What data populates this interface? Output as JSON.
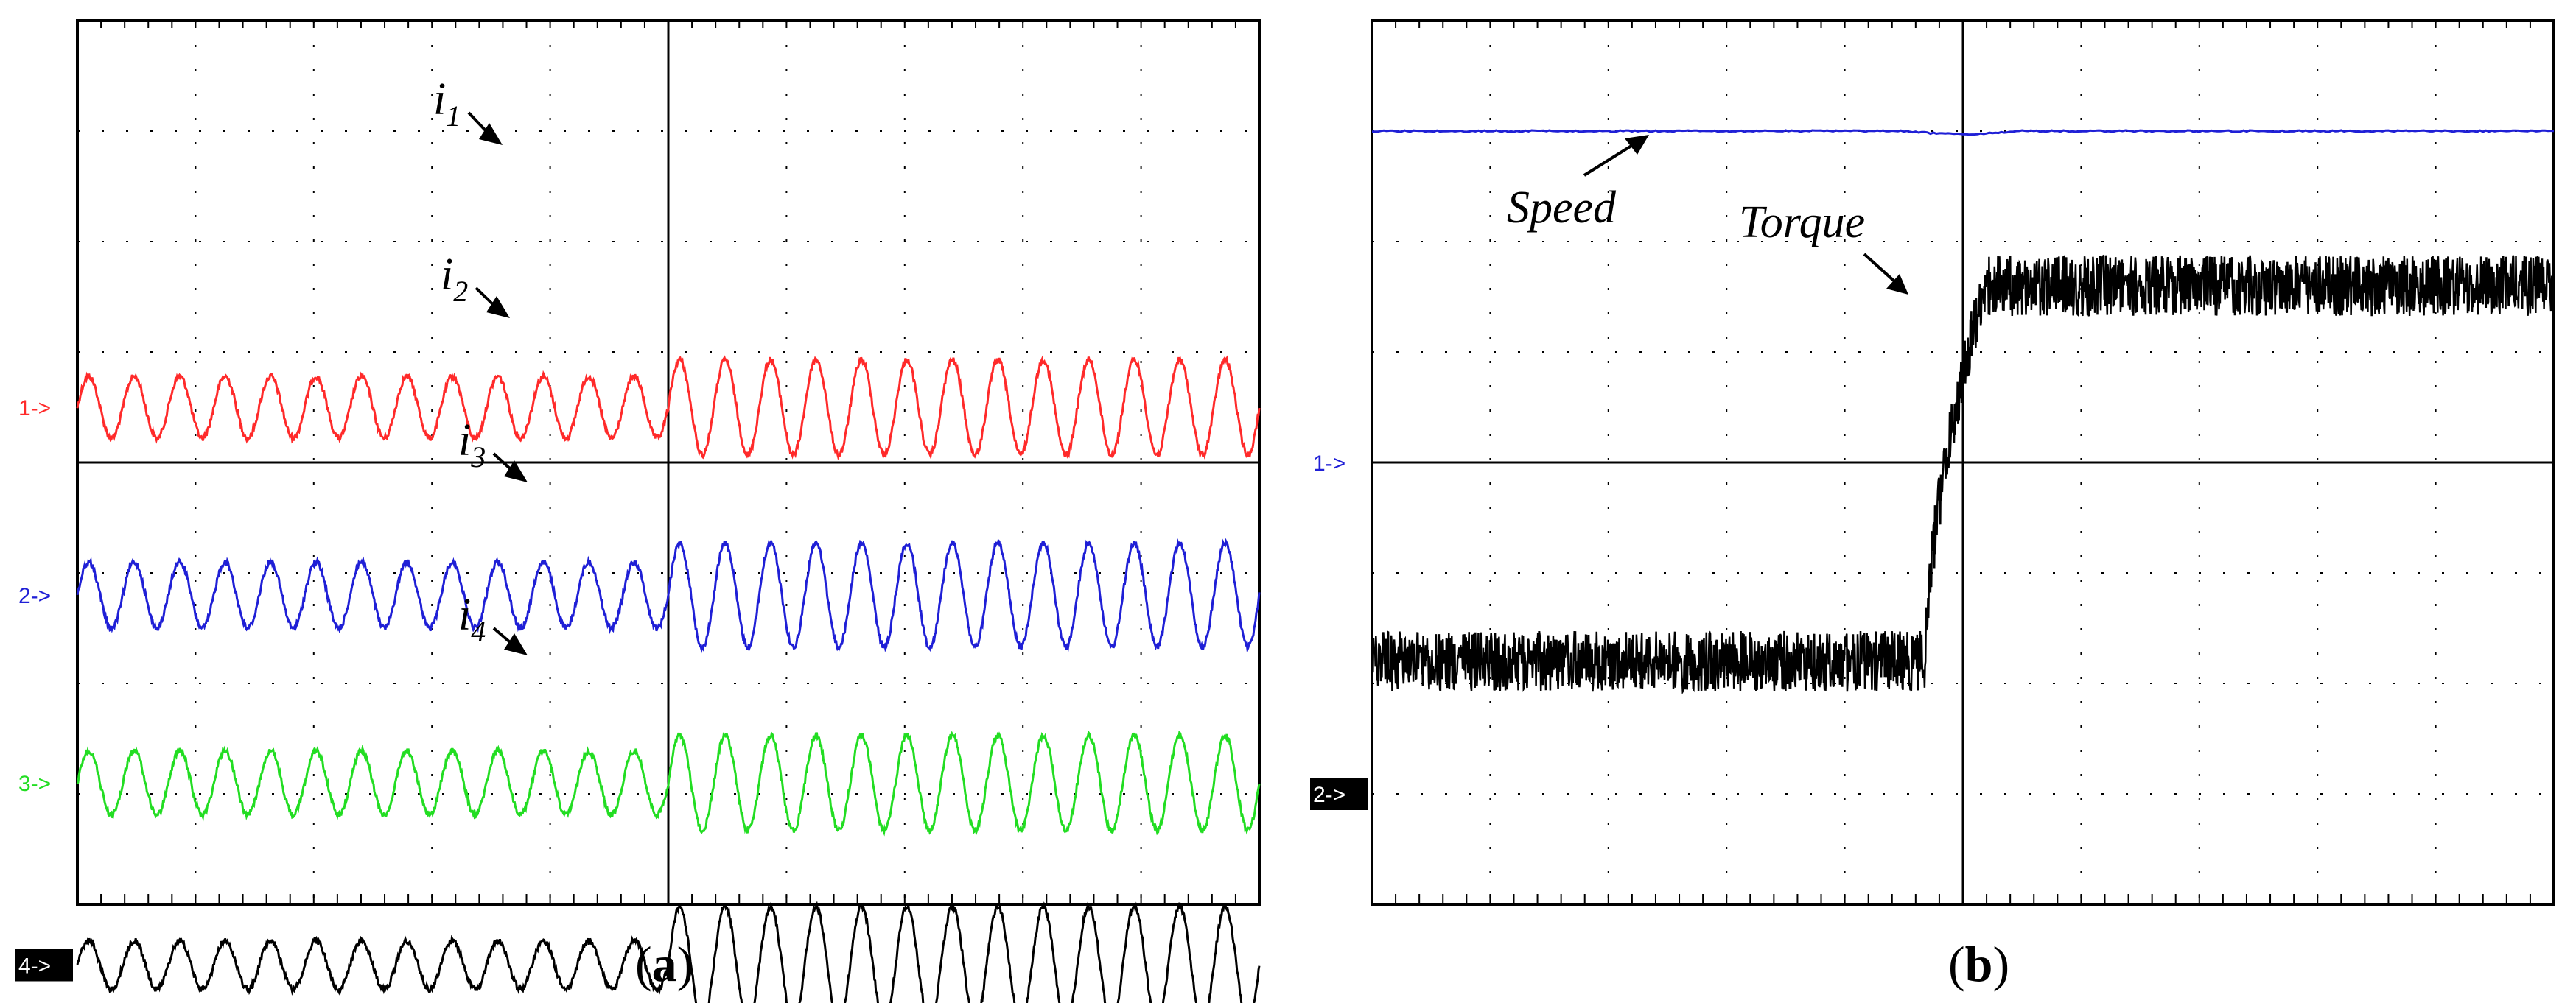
{
  "captions": {
    "a": "a",
    "b": "b"
  },
  "chart_data": [
    {
      "type": "line",
      "panel": "a",
      "grid": true,
      "channels": [
        {
          "marker": "1->",
          "name": "i",
          "sub": "1",
          "color": "#ff2a2a",
          "marker_bg": "",
          "level_div": 3.5,
          "amp_before": 0.28,
          "amp_after": 0.43,
          "cycles_before": 13,
          "cycles_after": 13
        },
        {
          "marker": "2->",
          "name": "i",
          "sub": "2",
          "color": "#1f1fd6",
          "marker_bg": "",
          "level_div": 5.2,
          "amp_before": 0.3,
          "amp_after": 0.47,
          "cycles_before": 13,
          "cycles_after": 13
        },
        {
          "marker": "3->",
          "name": "i",
          "sub": "3",
          "color": "#22dd22",
          "marker_bg": "",
          "level_div": 6.9,
          "amp_before": 0.29,
          "amp_after": 0.43,
          "cycles_before": 13,
          "cycles_after": 13
        },
        {
          "marker": "4->",
          "name": "i",
          "sub": "4",
          "color": "#000000",
          "marker_bg": "#000000",
          "level_div": 8.55,
          "amp_before": 0.22,
          "amp_after": 0.53,
          "cycles_before": 13,
          "cycles_after": 13
        }
      ]
    },
    {
      "type": "line",
      "panel": "b",
      "grid": true,
      "channels": [
        {
          "marker": "1->",
          "color": "#1f1fd6",
          "marker_bg": ""
        },
        {
          "marker": "2->",
          "color": "#000000",
          "marker_bg": "#000000"
        }
      ],
      "series": [
        {
          "name": "Speed",
          "color": "#1f1fd6",
          "level_before_div": 1.0,
          "level_after_div": 1.0
        },
        {
          "name": "Torque",
          "color": "#000000",
          "level_before_div": 5.8,
          "level_after_div": 2.4,
          "step_at_div": 4.6
        }
      ]
    }
  ]
}
